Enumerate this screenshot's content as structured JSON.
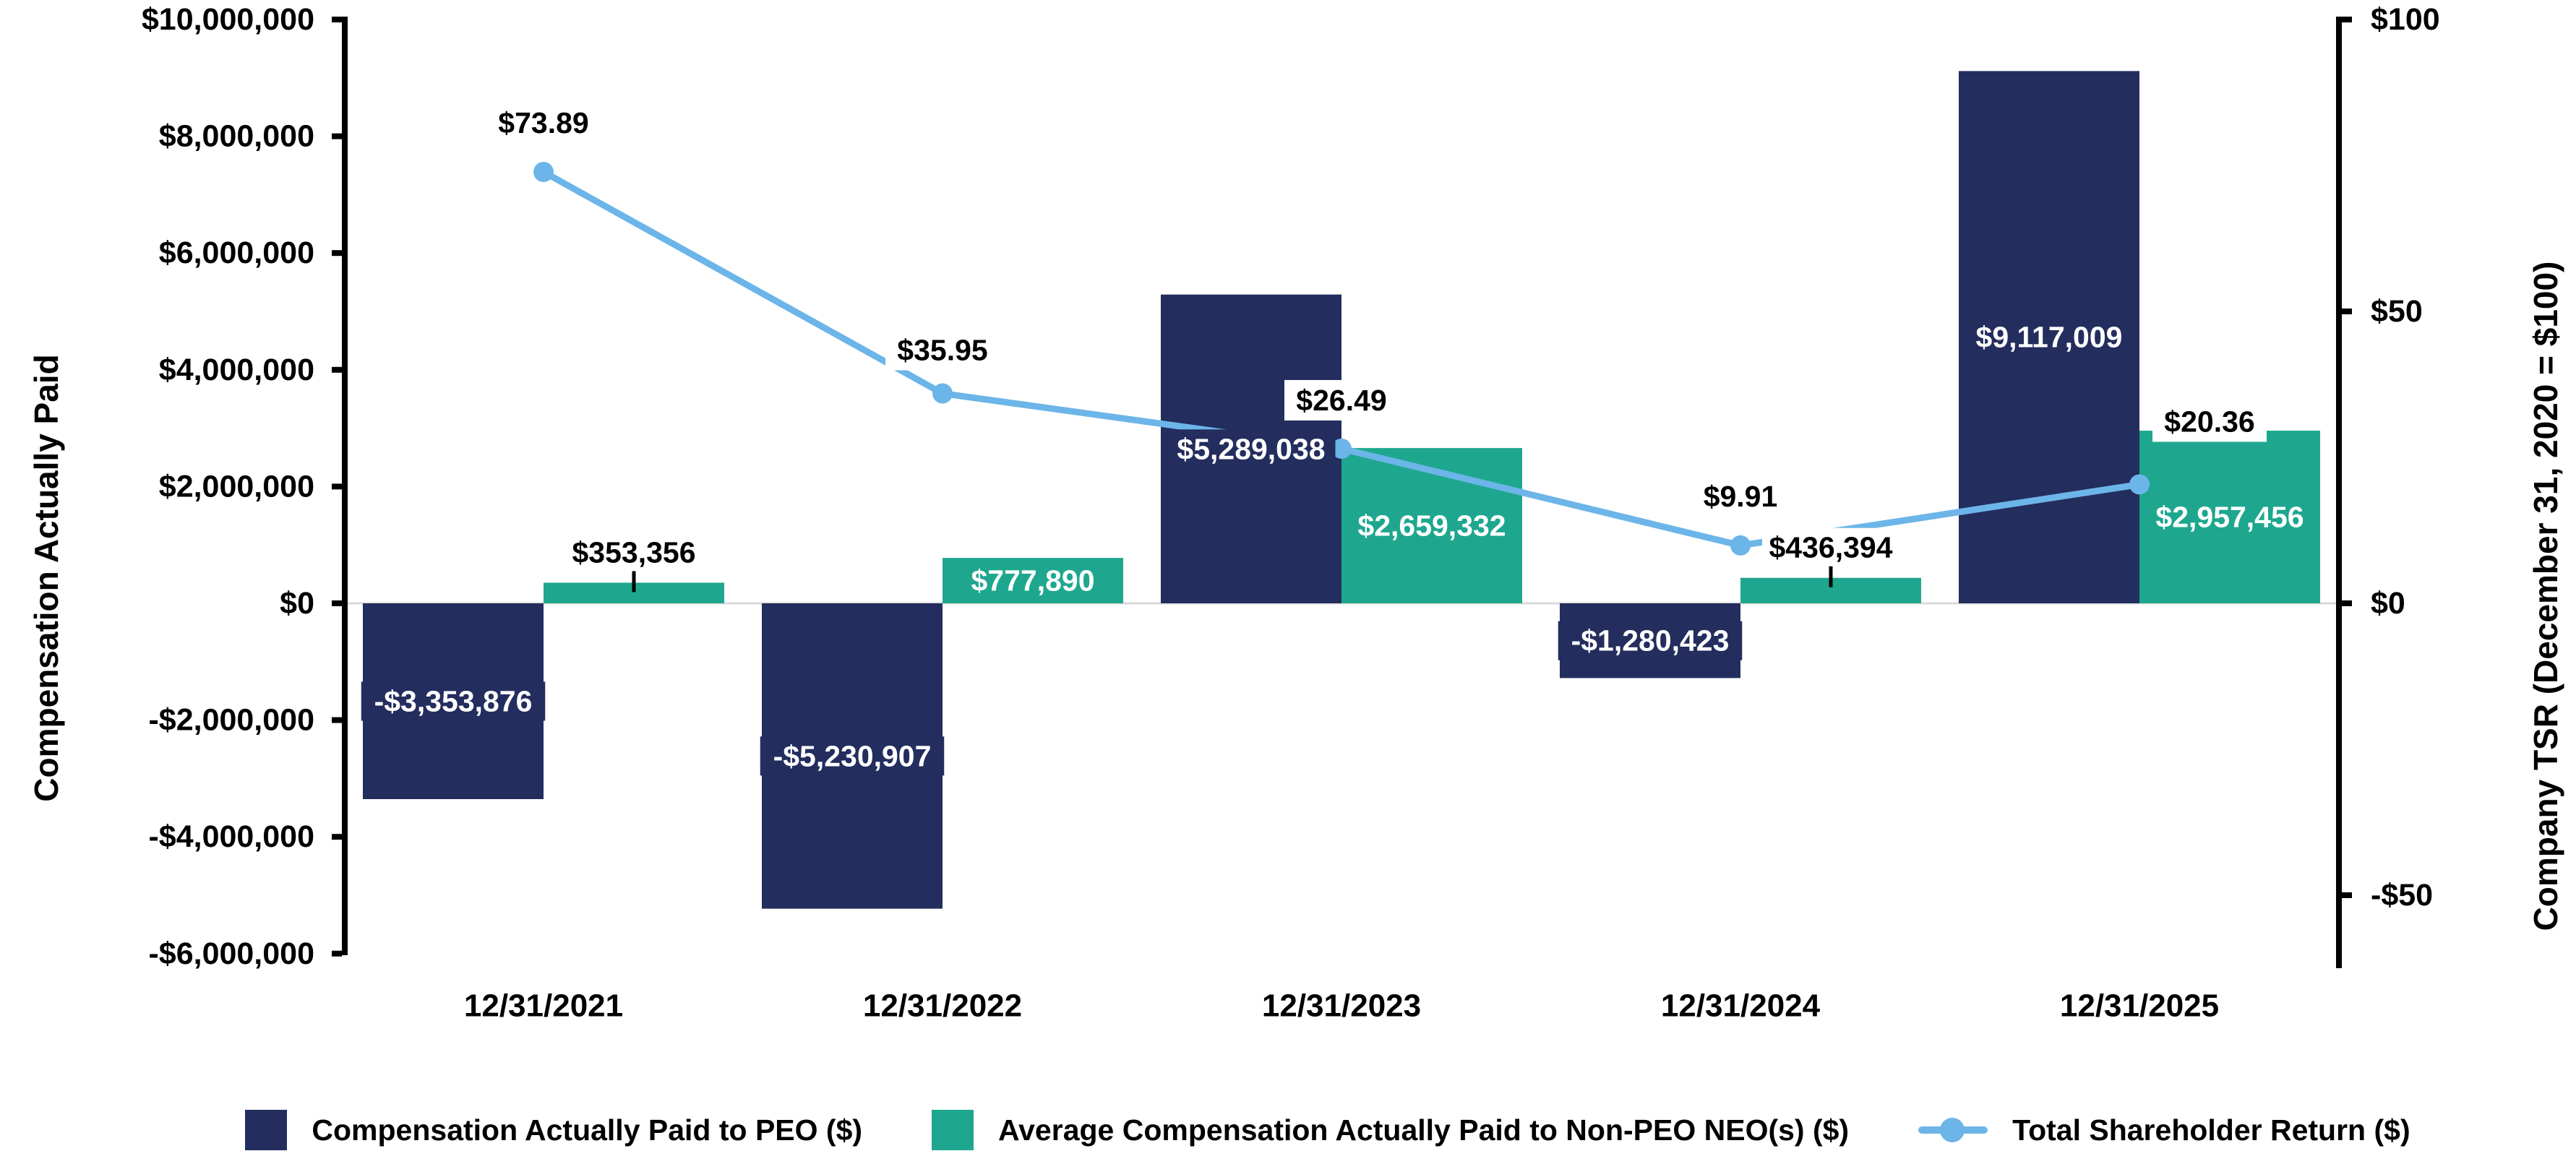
{
  "left_axis": {
    "title": "Compensation Actually Paid",
    "ticks": [
      "$10,000,000",
      "$8,000,000",
      "$6,000,000",
      "$4,000,000",
      "$2,000,000",
      "$0",
      "-$2,000,000",
      "-$4,000,000",
      "-$6,000,000"
    ],
    "tick_values": [
      10000000,
      8000000,
      6000000,
      4000000,
      2000000,
      0,
      -2000000,
      -4000000,
      -6000000
    ]
  },
  "right_axis": {
    "title": "Company TSR (December 31, 2020 = $100)",
    "ticks": [
      "$100",
      "$50",
      "$0",
      "-$50"
    ],
    "tick_values": [
      100,
      50,
      0,
      -50
    ]
  },
  "chart_data": {
    "type": "combo-bar-line",
    "categories": [
      "12/31/2021",
      "12/31/2022",
      "12/31/2023",
      "12/31/2024",
      "12/31/2025"
    ],
    "series": [
      {
        "name": "Compensation Actually Paid to PEO ($)",
        "type": "bar",
        "axis": "left",
        "color": "#232d5e",
        "values": [
          -3353876,
          -5230907,
          5289038,
          -1280423,
          9117009
        ],
        "labels": [
          "-$3,353,876",
          "-$5,230,907",
          "$5,289,038",
          "-$1,280,423",
          "$9,117,009"
        ]
      },
      {
        "name": "Average Compensation Actually Paid to Non-PEO NEO(s) ($)",
        "type": "bar",
        "axis": "left",
        "color": "#1ea78e",
        "values": [
          353356,
          777890,
          2659332,
          436394,
          2957456
        ],
        "labels": [
          "$353,356",
          "$777,890",
          "$2,659,332",
          "$436,394",
          "$2,957,456"
        ]
      },
      {
        "name": "Total Shareholder Return ($)",
        "type": "line",
        "axis": "right",
        "color": "#6cb5e8",
        "values": [
          73.89,
          35.95,
          26.49,
          9.91,
          20.36
        ],
        "labels": [
          "$73.89",
          "$35.95",
          "$26.49",
          "$9.91",
          "$20.36"
        ]
      }
    ],
    "left_ylim": [
      -6000000,
      10000000
    ],
    "right_ylim": [
      -50,
      100
    ],
    "grid": "off",
    "legend_position": "bottom",
    "baseline_color": "#d9d9d9",
    "axis_color": "#000000",
    "label_text_colors": {
      "inside": "#ffffff",
      "outside": "#000000",
      "tsr": "#000000"
    }
  }
}
